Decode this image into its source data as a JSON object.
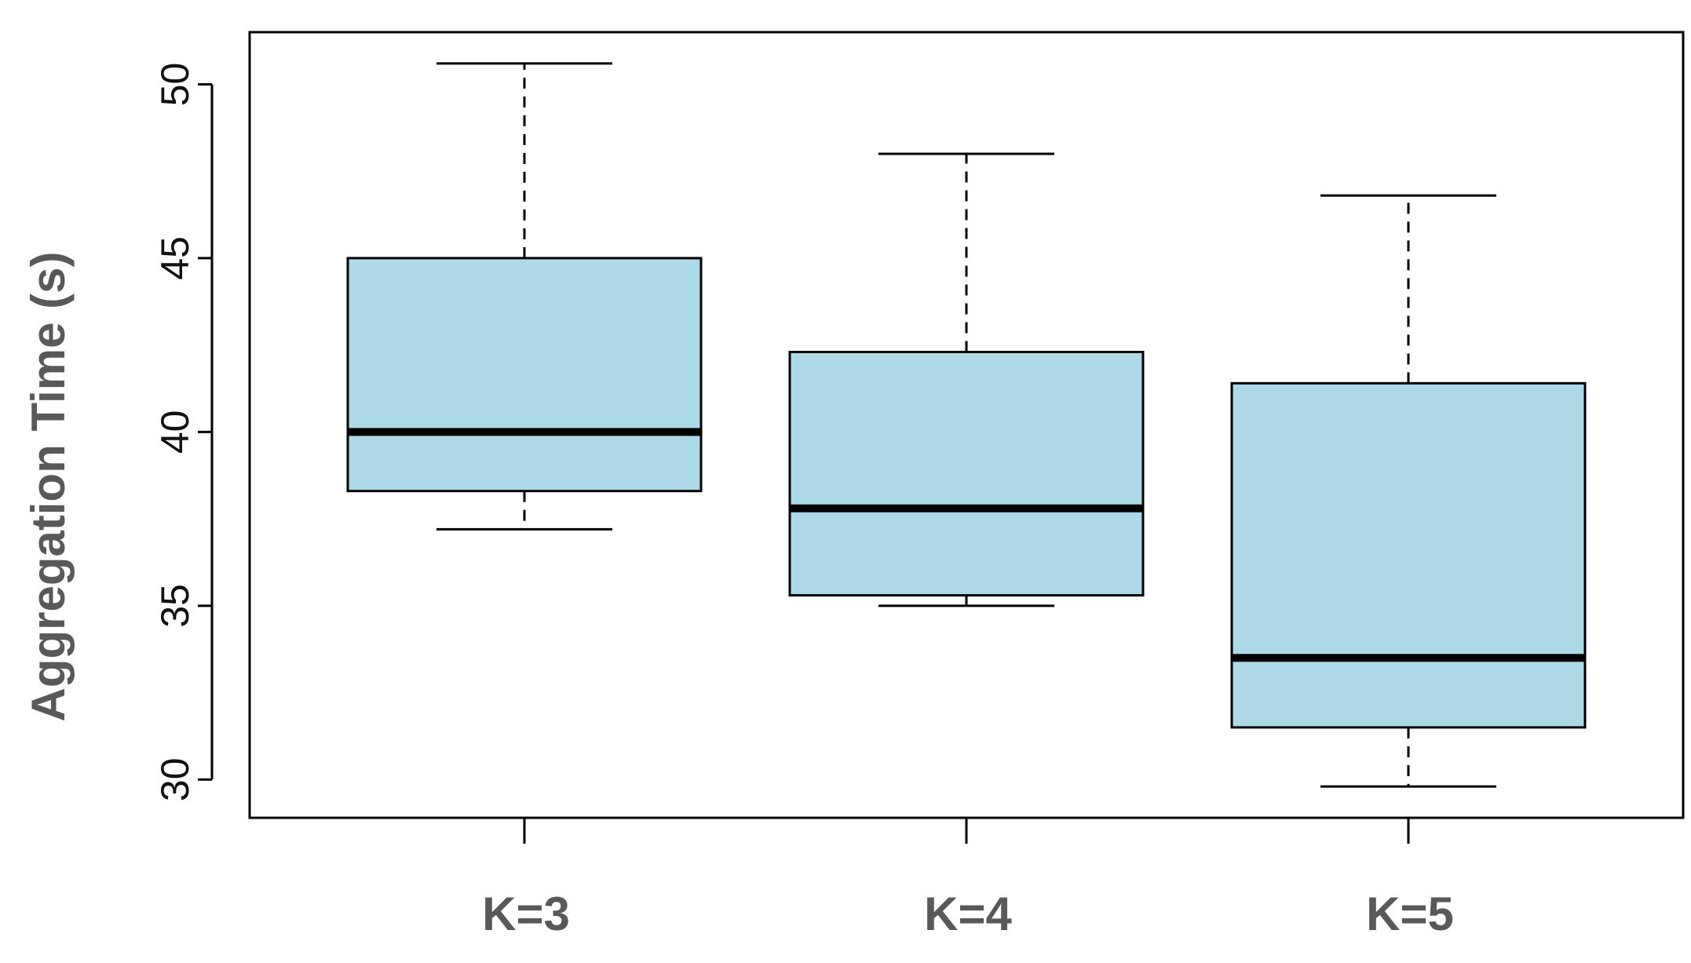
{
  "chart_data": {
    "type": "boxplot",
    "title": "",
    "xlabel": "",
    "ylabel": "Aggregation Time (s)",
    "ylim": [
      28.9,
      51.5
    ],
    "yticks": [
      30,
      35,
      40,
      45,
      50
    ],
    "categories": [
      "K=3",
      "K=4",
      "K=5"
    ],
    "boxes": [
      {
        "category": "K=3",
        "whisker_low": 37.2,
        "q1": 38.3,
        "median": 40.0,
        "q3": 45.0,
        "whisker_high": 50.6
      },
      {
        "category": "K=4",
        "whisker_low": 35.0,
        "q1": 35.3,
        "median": 37.8,
        "q3": 42.3,
        "whisker_high": 48.0
      },
      {
        "category": "K=5",
        "whisker_low": 29.8,
        "q1": 31.5,
        "median": 33.5,
        "q3": 41.4,
        "whisker_high": 46.8
      }
    ],
    "grid": false,
    "legend": "none",
    "colors": {
      "box_fill": "#add8e6",
      "box_stroke": "#000000",
      "median": "#000000",
      "labels": "#595959"
    }
  }
}
